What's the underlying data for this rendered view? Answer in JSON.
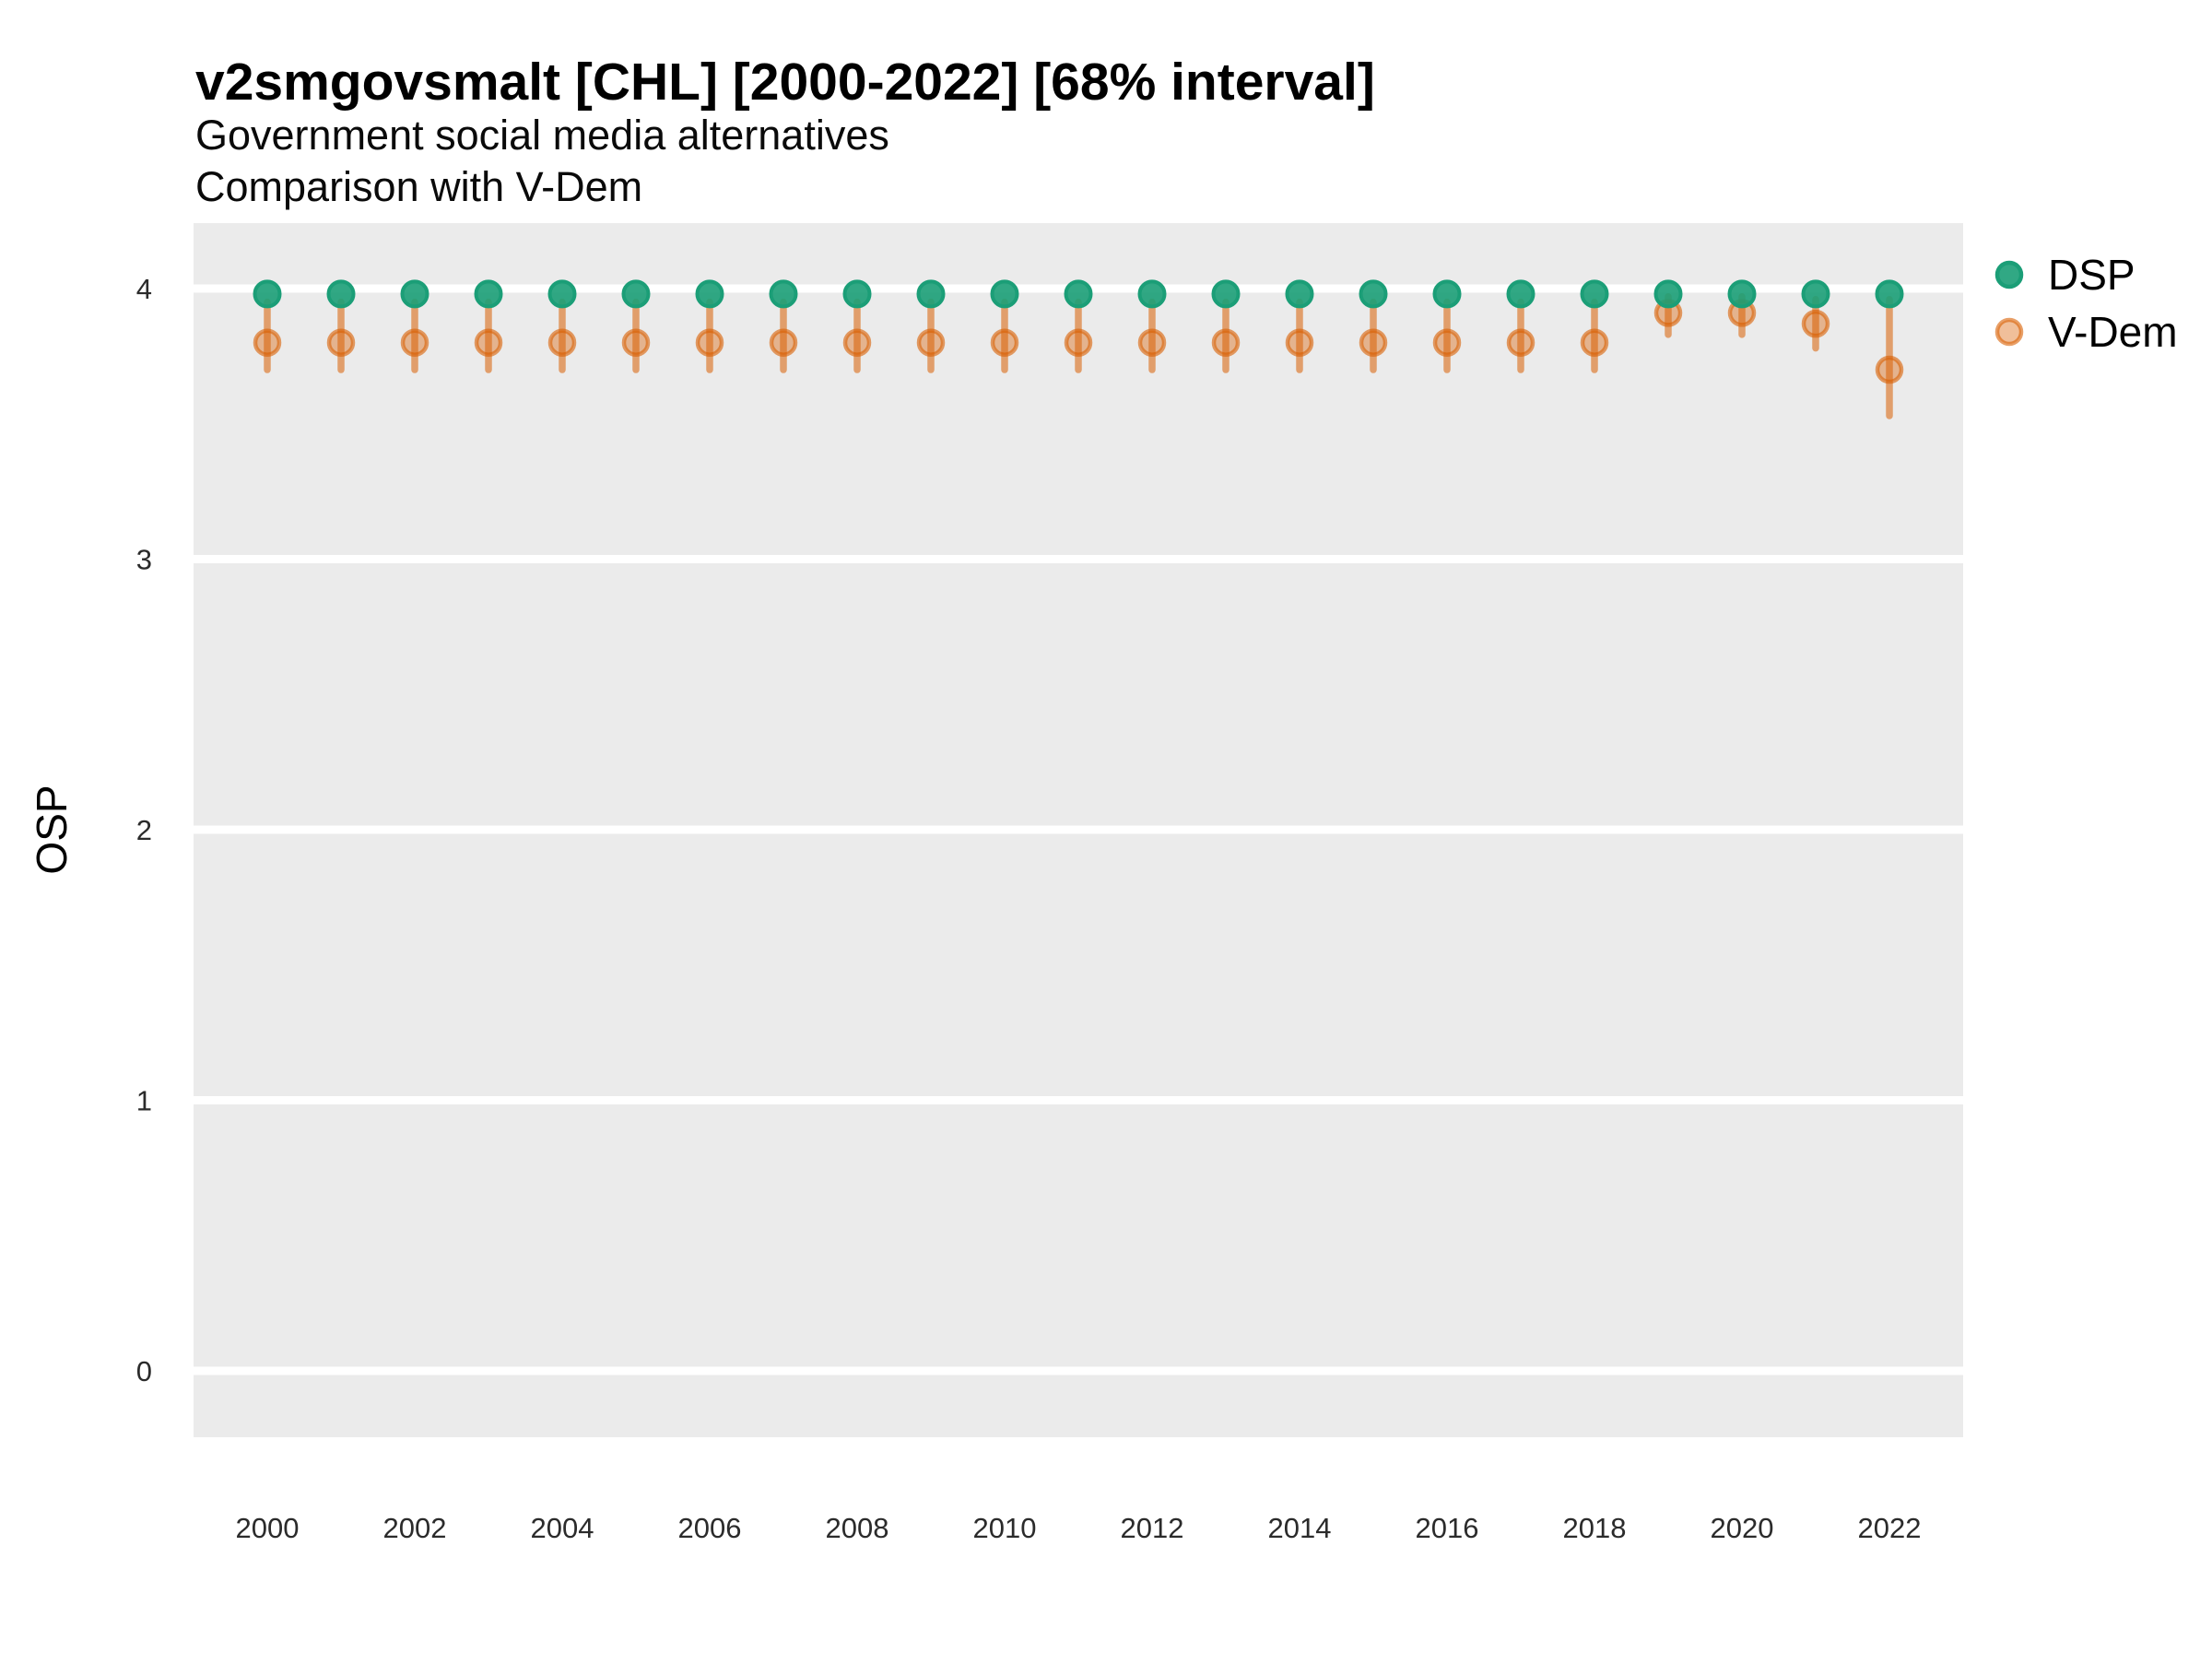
{
  "header": {
    "title": "v2smgovsmalt [CHL] [2000-2022] [68% interval]",
    "subtitle_line1": "Government social media alternatives",
    "subtitle_line2": "Comparison with V-Dem"
  },
  "axes": {
    "y_label": "OSP",
    "y_ticks": [
      0,
      1,
      2,
      3,
      4
    ],
    "x_ticks": [
      2000,
      2002,
      2004,
      2006,
      2008,
      2010,
      2012,
      2014,
      2016,
      2018,
      2020,
      2022
    ]
  },
  "legend": {
    "items": [
      {
        "label": "DSP",
        "color": "#1b9e77"
      },
      {
        "label": "V-Dem",
        "color": "#d95f02"
      }
    ]
  },
  "colors": {
    "dsp_green": "#1b9e77",
    "vdem_orange": "#d95f02",
    "panel_background": "#ebebeb",
    "gridline": "#ffffff"
  },
  "chart_data": {
    "type": "scatter",
    "title": "v2smgovsmalt [CHL] [2000-2022] [68% interval]",
    "subtitle": "Government social media alternatives — Comparison with V-Dem",
    "xlabel": "",
    "ylabel": "OSP",
    "ylim": [
      -0.25,
      4.25
    ],
    "x_tick_step": 2,
    "grid": "horizontal-major-white-on-gray",
    "legend_position": "right",
    "interval_label": "68% interval",
    "x": [
      2000,
      2001,
      2002,
      2003,
      2004,
      2005,
      2006,
      2007,
      2008,
      2009,
      2010,
      2011,
      2012,
      2013,
      2014,
      2015,
      2016,
      2017,
      2018,
      2019,
      2020,
      2021,
      2022
    ],
    "series": [
      {
        "name": "DSP",
        "color": "#1b9e77",
        "values": [
          3.98,
          3.98,
          3.98,
          3.98,
          3.98,
          3.98,
          3.98,
          3.98,
          3.98,
          3.98,
          3.98,
          3.98,
          3.98,
          3.98,
          3.98,
          3.98,
          3.98,
          3.98,
          3.98,
          3.98,
          3.98,
          3.98,
          3.98
        ]
      },
      {
        "name": "V-Dem",
        "color": "#d95f02",
        "values": [
          3.8,
          3.8,
          3.8,
          3.8,
          3.8,
          3.8,
          3.8,
          3.8,
          3.8,
          3.8,
          3.8,
          3.8,
          3.8,
          3.8,
          3.8,
          3.8,
          3.8,
          3.8,
          3.8,
          3.91,
          3.91,
          3.87,
          3.7
        ],
        "ci68_low": [
          3.7,
          3.7,
          3.7,
          3.7,
          3.7,
          3.7,
          3.7,
          3.7,
          3.7,
          3.7,
          3.7,
          3.7,
          3.7,
          3.7,
          3.7,
          3.7,
          3.7,
          3.7,
          3.7,
          3.83,
          3.83,
          3.78,
          3.53
        ],
        "ci68_high": [
          3.95,
          3.95,
          3.95,
          3.95,
          3.95,
          3.95,
          3.95,
          3.95,
          3.95,
          3.95,
          3.95,
          3.95,
          3.95,
          3.95,
          3.95,
          3.95,
          3.95,
          3.95,
          3.95,
          3.97,
          3.97,
          3.96,
          3.96
        ]
      }
    ]
  }
}
